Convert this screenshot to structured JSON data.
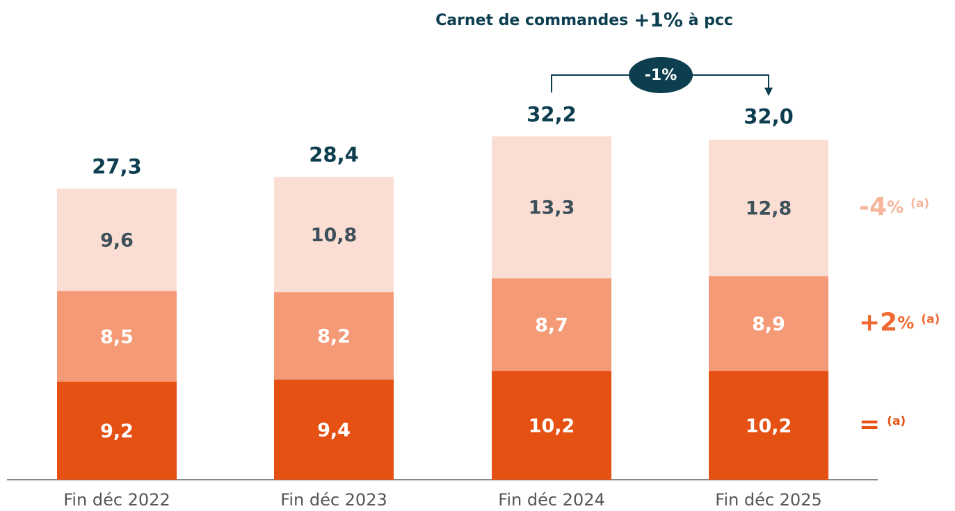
{
  "chart_data": {
    "type": "stacked_bar",
    "title_parts": [
      "Carnet de commandes ",
      "+1%",
      " à pcc"
    ],
    "categories": [
      "Fin déc 2022",
      "Fin déc 2023",
      "Fin déc 2024",
      "Fin déc 2025"
    ],
    "series": [
      {
        "color": "#e55013",
        "values": [
          9.2,
          9.4,
          10.2,
          10.2
        ],
        "value_labels": [
          "9,2",
          "9,4",
          "10,2",
          "10,2"
        ]
      },
      {
        "color": "#f59a76",
        "values": [
          8.5,
          8.2,
          8.7,
          8.9
        ],
        "value_labels": [
          "8,5",
          "8,2",
          "8,7",
          "8,9"
        ]
      },
      {
        "color": "#fbded3",
        "values": [
          9.6,
          10.8,
          13.3,
          12.8
        ],
        "value_labels": [
          "9,6",
          "10,8",
          "13,3",
          "12,8"
        ]
      }
    ],
    "totals": [
      27.3,
      28.4,
      32.2,
      32.0
    ],
    "total_labels": [
      "27,3",
      "28,4",
      "32,2",
      "32,0"
    ],
    "ylim": [
      0,
      45
    ],
    "comparison": "-1%",
    "series_changes": [
      {
        "main": "=",
        "note": "(a)",
        "color": "#e55013"
      },
      {
        "main": "+2",
        "unit": "%",
        "note": "(a)",
        "color": "#ef6a32"
      },
      {
        "main": "-4",
        "unit": "%",
        "note": "(a)",
        "color": "#f7b59b"
      }
    ]
  }
}
